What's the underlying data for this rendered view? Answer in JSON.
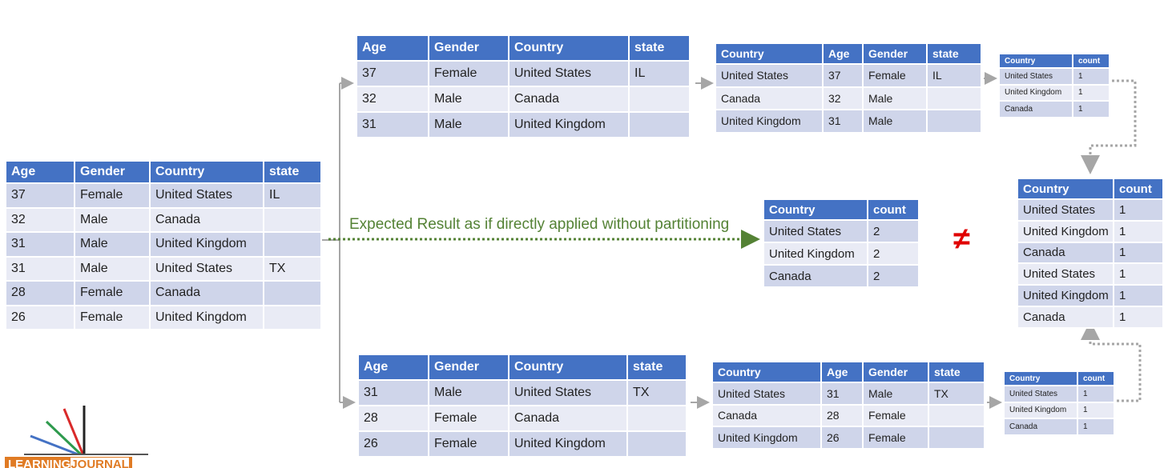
{
  "source_table": {
    "headers": [
      "Age",
      "Gender",
      "Country",
      "state"
    ],
    "rows": [
      [
        "37",
        "Female",
        "United States",
        "IL"
      ],
      [
        "32",
        "Male",
        "Canada",
        ""
      ],
      [
        "31",
        "Male",
        "United Kingdom",
        ""
      ],
      [
        "31",
        "Male",
        "United States",
        "TX"
      ],
      [
        "28",
        "Female",
        "Canada",
        ""
      ],
      [
        "26",
        "Female",
        "United Kingdom",
        ""
      ]
    ]
  },
  "partition_1": {
    "headers": [
      "Age",
      "Gender",
      "Country",
      "state"
    ],
    "rows": [
      [
        "37",
        "Female",
        "United States",
        "IL"
      ],
      [
        "32",
        "Male",
        "Canada",
        ""
      ],
      [
        "31",
        "Male",
        "United Kingdom",
        ""
      ]
    ]
  },
  "partition_1_reordered": {
    "headers": [
      "Country",
      "Age",
      "Gender",
      "state"
    ],
    "rows": [
      [
        "United States",
        "37",
        "Female",
        "IL"
      ],
      [
        "Canada",
        "32",
        "Male",
        ""
      ],
      [
        "United Kingdom",
        "31",
        "Male",
        ""
      ]
    ]
  },
  "partition_1_counts": {
    "headers": [
      "Country",
      "count"
    ],
    "rows": [
      [
        "United States",
        "1"
      ],
      [
        "United Kingdom",
        "1"
      ],
      [
        "Canada",
        "1"
      ]
    ]
  },
  "partition_2": {
    "headers": [
      "Age",
      "Gender",
      "Country",
      "state"
    ],
    "rows": [
      [
        "31",
        "Male",
        "United States",
        "TX"
      ],
      [
        "28",
        "Female",
        "Canada",
        ""
      ],
      [
        "26",
        "Female",
        "United Kingdom",
        ""
      ]
    ]
  },
  "partition_2_reordered": {
    "headers": [
      "Country",
      "Age",
      "Gender",
      "state"
    ],
    "rows": [
      [
        "United States",
        "31",
        "Male",
        "TX"
      ],
      [
        "Canada",
        "28",
        "Female",
        ""
      ],
      [
        "United Kingdom",
        "26",
        "Female",
        ""
      ]
    ]
  },
  "partition_2_counts": {
    "headers": [
      "Country",
      "count"
    ],
    "rows": [
      [
        "United States",
        "1"
      ],
      [
        "United Kingdom",
        "1"
      ],
      [
        "Canada",
        "1"
      ]
    ]
  },
  "expected_table": {
    "headers": [
      "Country",
      "count"
    ],
    "rows": [
      [
        "United States",
        "2"
      ],
      [
        "United Kingdom",
        "2"
      ],
      [
        "Canada",
        "2"
      ]
    ]
  },
  "combined_table": {
    "headers": [
      "Country",
      "count"
    ],
    "rows": [
      [
        "United States",
        "1"
      ],
      [
        "United Kingdom",
        "1"
      ],
      [
        "Canada",
        "1"
      ],
      [
        "United States",
        "1"
      ],
      [
        "United Kingdom",
        "1"
      ],
      [
        "Canada",
        "1"
      ]
    ]
  },
  "expected_label": "Expected Result as if directly applied without partitioning",
  "not_equal_symbol": "≠",
  "colors": {
    "header": "#4472c4",
    "row_odd": "#cfd5ea",
    "row_even": "#e9ebf5",
    "arrow_gray": "#a6a6a6",
    "expected_green": "#548235",
    "not_equal_red": "#e00000"
  },
  "logo": {
    "text_part1": "LEARNING",
    "text_part2": "JOURNAL"
  }
}
